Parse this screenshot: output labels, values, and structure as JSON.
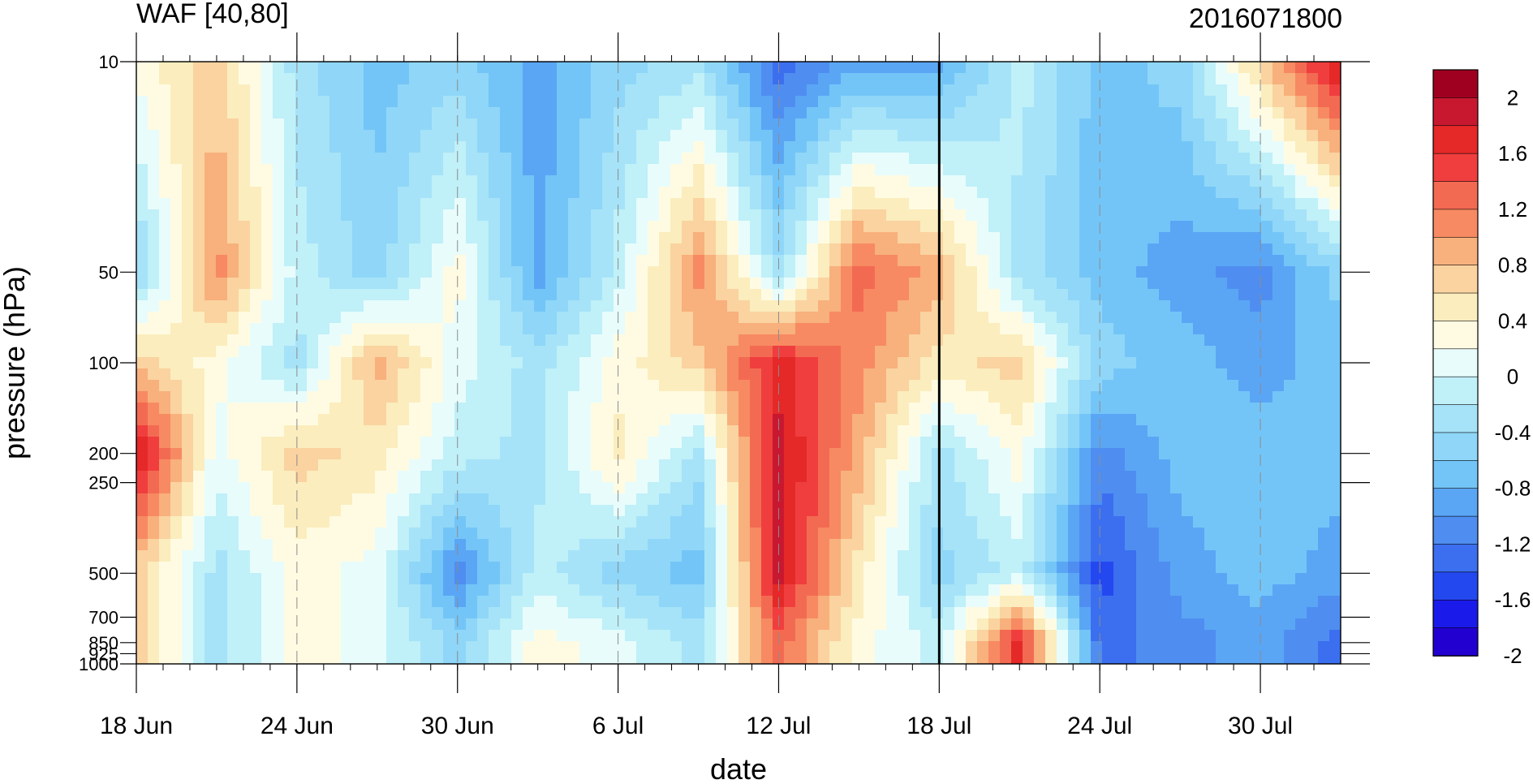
{
  "chart_data": {
    "type": "heatmap",
    "title_left": "WAF [40,80]",
    "title_right": "2016071800",
    "xlabel": "date",
    "ylabel": "pressure (hPa)",
    "x_tick_labels": [
      "18 Jun",
      "24 Jun",
      "30 Jun",
      "6 Jul",
      "12 Jul",
      "18 Jul",
      "24 Jul",
      "30 Jul"
    ],
    "x_range": [
      "18 Jun",
      "2 Aug"
    ],
    "marker_line_date": "18 Jul",
    "y_scale": "log",
    "y_ticks": [
      10,
      50,
      100,
      200,
      250,
      500,
      700,
      850,
      925,
      1000
    ],
    "y_range": [
      1000,
      10
    ],
    "colorbar": {
      "labels": [
        "2",
        "1.6",
        "1.2",
        "0.8",
        "0.4",
        "0",
        "-0.4",
        "-0.8",
        "-1.2",
        "-1.6",
        "-2"
      ],
      "levels": [
        -2.0,
        -1.8,
        -1.6,
        -1.4,
        -1.2,
        -1.0,
        -0.8,
        -0.6,
        -0.4,
        -0.2,
        0.0,
        0.2,
        0.4,
        0.6,
        0.8,
        1.0,
        1.2,
        1.4,
        1.6,
        1.8,
        2.0
      ],
      "colors": [
        "#2200d0",
        "#1a1aea",
        "#2448f0",
        "#3b6ff0",
        "#4f8ef0",
        "#5aa6f5",
        "#74c5f7",
        "#8fd6f8",
        "#a6e3f8",
        "#c0f0f8",
        "#e8fcfc",
        "#fffbe3",
        "#fbedbd",
        "#fad3a0",
        "#f8b07c",
        "#f78a62",
        "#f36a52",
        "#f03e3e",
        "#e52828",
        "#c81830",
        "#a00020"
      ]
    },
    "grid": "dashed vertical lines at labeled dates",
    "approx_values": {
      "x": [
        "18 Jun",
        "21 Jun",
        "24 Jun",
        "27 Jun",
        "30 Jun",
        "3 Jul",
        "6 Jul",
        "9 Jul",
        "12 Jul",
        "15 Jul",
        "18 Jul",
        "21 Jul",
        "24 Jul",
        "27 Jul",
        "30 Jul",
        "2 Aug"
      ],
      "levels_hPa": [
        10,
        50,
        100,
        200,
        500,
        850
      ],
      "z": [
        [
          0.2,
          0.6,
          -0.4,
          -0.8,
          -0.6,
          -1.0,
          -0.6,
          -0.4,
          -1.4,
          -1.0,
          -1.0,
          -0.2,
          -0.8,
          -0.6,
          0.6,
          1.8
        ],
        [
          -0.6,
          1.0,
          -0.2,
          -0.6,
          0.2,
          -1.0,
          -0.2,
          1.0,
          -0.4,
          1.2,
          0.8,
          -0.4,
          -0.8,
          -1.0,
          -1.2,
          -0.6
        ],
        [
          0.6,
          0.2,
          -0.4,
          0.8,
          0.0,
          -0.4,
          0.2,
          0.6,
          1.6,
          1.0,
          0.4,
          0.6,
          -0.6,
          -0.8,
          -1.0,
          -0.8
        ],
        [
          1.8,
          0.0,
          0.6,
          0.4,
          -0.2,
          -0.4,
          0.4,
          -0.4,
          1.8,
          0.8,
          -0.4,
          0.2,
          -1.2,
          -0.8,
          -0.8,
          -0.8
        ],
        [
          0.6,
          -0.4,
          0.2,
          0.0,
          -1.2,
          -0.2,
          -0.6,
          -0.8,
          1.8,
          0.4,
          -0.6,
          -0.2,
          -1.6,
          -1.0,
          -0.8,
          -1.0
        ],
        [
          0.6,
          -0.4,
          0.2,
          0.0,
          -0.6,
          0.2,
          0.0,
          -0.4,
          1.2,
          0.2,
          -0.2,
          1.6,
          -1.4,
          -1.2,
          -1.0,
          -1.4
        ]
      ]
    }
  }
}
